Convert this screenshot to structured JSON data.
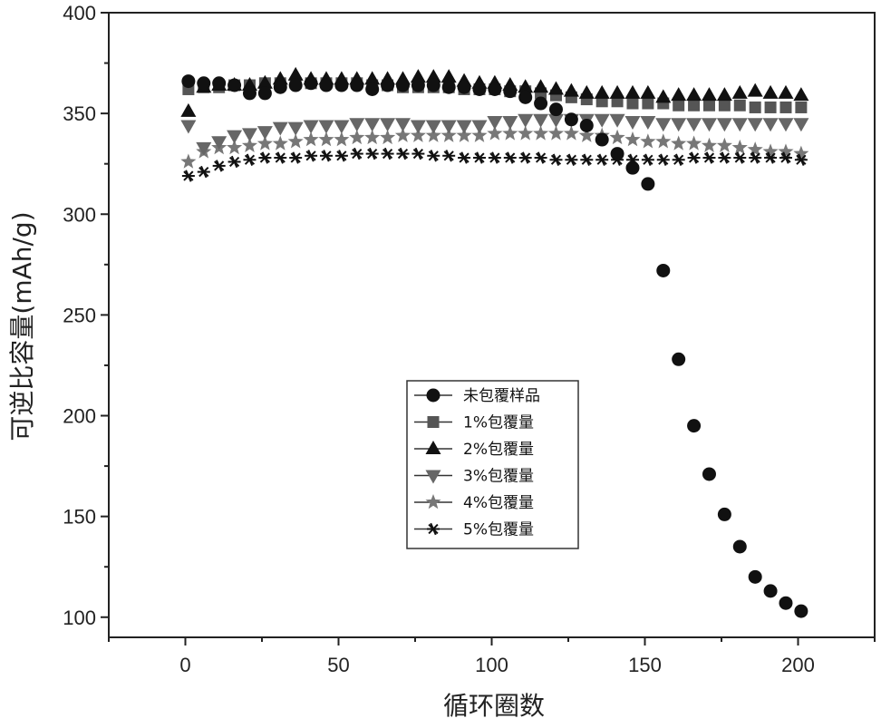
{
  "chart_data": {
    "type": "scatter",
    "title": "",
    "xlabel": "循环圈数",
    "ylabel": "可逆比容量(mAh/g)",
    "xlim": [
      -25,
      225
    ],
    "ylim": [
      90,
      400
    ],
    "xticks": [
      0,
      50,
      100,
      150,
      200
    ],
    "yticks": [
      100,
      150,
      200,
      250,
      300,
      350,
      400
    ],
    "legend_position": "center",
    "series": [
      {
        "name": "未包覆样品",
        "marker": "circle",
        "color": "#111111",
        "x": [
          1,
          6,
          11,
          16,
          21,
          26,
          31,
          36,
          41,
          46,
          51,
          56,
          61,
          66,
          71,
          76,
          81,
          86,
          91,
          96,
          101,
          106,
          111,
          116,
          121,
          126,
          131,
          136,
          141,
          146,
          151,
          156,
          161,
          166,
          171,
          176,
          181,
          186,
          191,
          196,
          201
        ],
        "y": [
          366,
          365,
          365,
          364,
          360,
          360,
          363,
          364,
          365,
          364,
          364,
          364,
          362,
          364,
          364,
          364,
          364,
          363,
          363,
          362,
          362,
          361,
          358,
          355,
          352,
          347,
          344,
          337,
          330,
          323,
          315,
          272,
          228,
          195,
          171,
          151,
          135,
          120,
          113,
          107,
          103
        ]
      },
      {
        "name": "1%包覆量",
        "marker": "square",
        "color": "#555555",
        "x": [
          1,
          6,
          11,
          16,
          21,
          26,
          31,
          36,
          41,
          46,
          51,
          56,
          61,
          66,
          71,
          76,
          81,
          86,
          91,
          96,
          101,
          106,
          111,
          116,
          121,
          126,
          131,
          136,
          141,
          146,
          151,
          156,
          161,
          166,
          171,
          176,
          181,
          186,
          191,
          196,
          201
        ],
        "y": [
          362,
          363,
          363,
          364,
          364,
          365,
          365,
          365,
          365,
          365,
          365,
          365,
          364,
          364,
          363,
          363,
          363,
          363,
          362,
          362,
          362,
          361,
          361,
          360,
          359,
          358,
          357,
          356,
          356,
          355,
          355,
          355,
          354,
          354,
          354,
          354,
          354,
          353,
          353,
          353,
          353
        ]
      },
      {
        "name": "2%包覆量",
        "marker": "triangle-up",
        "color": "#111111",
        "x": [
          1,
          6,
          11,
          16,
          21,
          26,
          31,
          36,
          41,
          46,
          51,
          56,
          61,
          66,
          71,
          76,
          81,
          86,
          91,
          96,
          101,
          106,
          111,
          116,
          121,
          126,
          131,
          136,
          141,
          146,
          151,
          156,
          161,
          166,
          171,
          176,
          181,
          186,
          191,
          196,
          201
        ],
        "y": [
          351,
          363,
          364,
          364,
          364,
          365,
          367,
          369,
          367,
          367,
          367,
          367,
          367,
          367,
          367,
          368,
          368,
          368,
          366,
          365,
          365,
          364,
          363,
          363,
          362,
          361,
          360,
          360,
          360,
          360,
          360,
          358,
          359,
          359,
          359,
          359,
          360,
          361,
          360,
          360,
          359
        ]
      },
      {
        "name": "3%包覆量",
        "marker": "triangle-down",
        "color": "#666666",
        "x": [
          1,
          6,
          11,
          16,
          21,
          26,
          31,
          36,
          41,
          46,
          51,
          56,
          61,
          66,
          71,
          76,
          81,
          86,
          91,
          96,
          101,
          106,
          111,
          116,
          121,
          126,
          131,
          136,
          141,
          146,
          151,
          156,
          161,
          166,
          171,
          176,
          181,
          186,
          191,
          196,
          201
        ],
        "y": [
          344,
          333,
          336,
          339,
          340,
          341,
          343,
          343,
          344,
          344,
          344,
          345,
          345,
          345,
          345,
          344,
          344,
          344,
          344,
          344,
          346,
          346,
          347,
          347,
          347,
          347,
          347,
          347,
          347,
          346,
          346,
          345,
          345,
          345,
          345,
          345,
          345,
          345,
          345,
          345,
          345
        ]
      },
      {
        "name": "4%包覆量",
        "marker": "star",
        "color": "#777777",
        "x": [
          1,
          6,
          11,
          16,
          21,
          26,
          31,
          36,
          41,
          46,
          51,
          56,
          61,
          66,
          71,
          76,
          81,
          86,
          91,
          96,
          101,
          106,
          111,
          116,
          121,
          126,
          131,
          136,
          141,
          146,
          151,
          156,
          161,
          166,
          171,
          176,
          181,
          186,
          191,
          196,
          201
        ],
        "y": [
          326,
          331,
          333,
          333,
          334,
          335,
          335,
          336,
          337,
          337,
          337,
          338,
          338,
          338,
          339,
          339,
          339,
          339,
          339,
          339,
          340,
          340,
          340,
          340,
          340,
          340,
          339,
          339,
          338,
          337,
          336,
          336,
          335,
          335,
          334,
          334,
          333,
          332,
          331,
          331,
          330
        ]
      },
      {
        "name": "5%包覆量",
        "marker": "asterisk",
        "color": "#111111",
        "x": [
          1,
          6,
          11,
          16,
          21,
          26,
          31,
          36,
          41,
          46,
          51,
          56,
          61,
          66,
          71,
          76,
          81,
          86,
          91,
          96,
          101,
          106,
          111,
          116,
          121,
          126,
          131,
          136,
          141,
          146,
          151,
          156,
          161,
          166,
          171,
          176,
          181,
          186,
          191,
          196,
          201
        ],
        "y": [
          319,
          321,
          324,
          326,
          327,
          328,
          328,
          328,
          329,
          329,
          329,
          330,
          330,
          330,
          330,
          330,
          329,
          329,
          328,
          328,
          328,
          328,
          328,
          328,
          327,
          327,
          327,
          327,
          327,
          327,
          327,
          327,
          327,
          328,
          328,
          328,
          328,
          328,
          328,
          328,
          327
        ]
      }
    ]
  }
}
